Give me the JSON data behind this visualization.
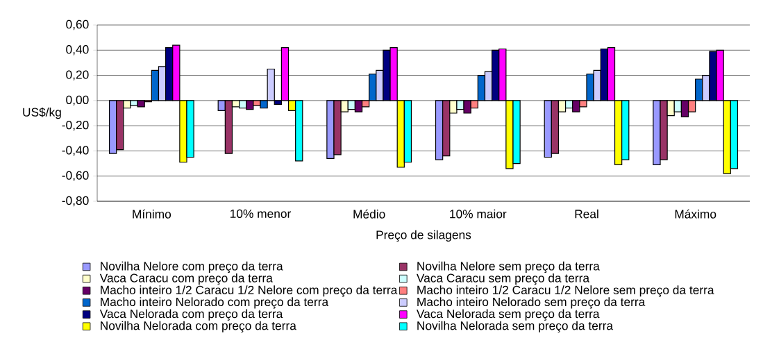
{
  "chart_data": {
    "type": "bar",
    "xlabel": "Preço de silagens",
    "ylabel": "US$/kg",
    "categories": [
      "Mínimo",
      "10% menor",
      "Médio",
      "10% maior",
      "Real",
      "Máximo"
    ],
    "series": [
      {
        "name": "Novilha Nelore com preço da terra",
        "color": "#9999ff",
        "values": [
          -0.42,
          -0.08,
          -0.46,
          -0.47,
          -0.45,
          -0.51
        ]
      },
      {
        "name": "Novilha Nelore sem preço da terra",
        "color": "#993366",
        "values": [
          -0.39,
          -0.42,
          -0.43,
          -0.44,
          -0.42,
          -0.47
        ]
      },
      {
        "name": "Vaca Caracu com preço da terra",
        "color": "#ffffcc",
        "values": [
          -0.06,
          -0.05,
          -0.09,
          -0.1,
          -0.09,
          -0.12
        ]
      },
      {
        "name": "Vaca Caracu sem preço da terra",
        "color": "#ccffff",
        "values": [
          -0.04,
          -0.06,
          -0.07,
          -0.07,
          -0.06,
          -0.09
        ]
      },
      {
        "name": "Macho inteiro 1/2 Caracu 1/2 Nelore com preço da terra",
        "color": "#660066",
        "values": [
          -0.05,
          -0.07,
          -0.09,
          -0.1,
          -0.09,
          -0.13
        ]
      },
      {
        "name": "Macho inteiro 1/2 Caracu 1/2 Nelore sem preço da terra",
        "color": "#ff8080",
        "values": [
          -0.01,
          -0.04,
          -0.05,
          -0.06,
          -0.05,
          -0.09
        ]
      },
      {
        "name": "Macho inteiro Nelorado com preço da terra",
        "color": "#0066cc",
        "values": [
          0.24,
          -0.06,
          0.21,
          0.2,
          0.21,
          0.17
        ]
      },
      {
        "name": "Macho inteiro Nelorado sem preço da terra",
        "color": "#ccccff",
        "values": [
          0.27,
          0.25,
          0.24,
          0.23,
          0.24,
          0.2
        ]
      },
      {
        "name": "Vaca Nelorada com preço da terra",
        "color": "#000080",
        "values": [
          0.42,
          -0.03,
          0.4,
          0.4,
          0.41,
          0.39
        ]
      },
      {
        "name": "Vaca Nelorada sem preço da terra",
        "color": "#ff00ff",
        "values": [
          0.44,
          0.42,
          0.42,
          0.41,
          0.42,
          0.4
        ]
      },
      {
        "name": "Novilha Nelorada com  preço da terra",
        "color": "#ffff00",
        "values": [
          -0.49,
          -0.08,
          -0.53,
          -0.54,
          -0.51,
          -0.58
        ]
      },
      {
        "name": "Novilha Nelorada sem preço da terra",
        "color": "#00ffff",
        "values": [
          -0.45,
          -0.48,
          -0.49,
          -0.5,
          -0.47,
          -0.54
        ]
      }
    ],
    "ylim": [
      -0.8,
      0.6
    ],
    "yticks": [
      {
        "value": -0.8,
        "label": "-0,80"
      },
      {
        "value": -0.6,
        "label": "-0,60"
      },
      {
        "value": -0.4,
        "label": "-0,40"
      },
      {
        "value": -0.2,
        "label": "-0,20"
      },
      {
        "value": 0,
        "label": "0,00"
      },
      {
        "value": 0.2,
        "label": "0,20"
      },
      {
        "value": 0.4,
        "label": "0,40"
      },
      {
        "value": 0.6,
        "label": "0,60"
      }
    ],
    "grid": "y",
    "legend": "bottom"
  }
}
